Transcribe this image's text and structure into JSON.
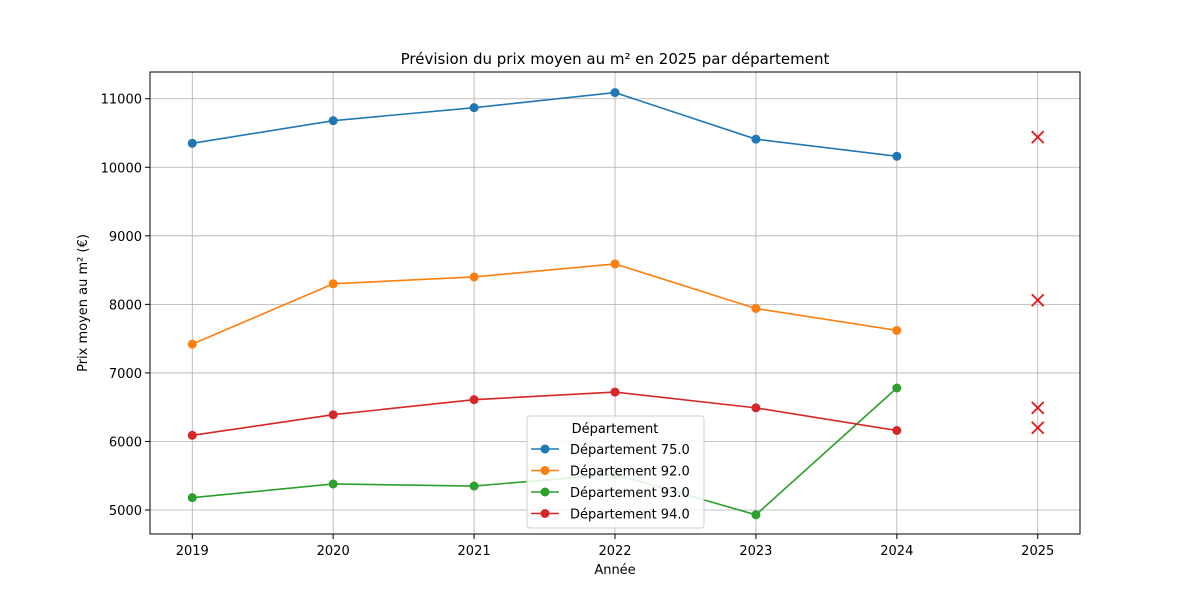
{
  "chart_data": {
    "type": "line",
    "title": "Prévision du prix moyen au m² en 2025 par département",
    "xlabel": "Année",
    "ylabel": "Prix moyen au m² (€)",
    "x": [
      2019,
      2020,
      2021,
      2022,
      2023,
      2024,
      2025
    ],
    "xlim": [
      2018.7,
      2025.3
    ],
    "ylim": [
      4650,
      11390
    ],
    "yticks": [
      5000,
      6000,
      7000,
      8000,
      9000,
      10000,
      11000
    ],
    "grid": true,
    "legend": {
      "title": "Département",
      "placement": "bottom-center"
    },
    "series": [
      {
        "name": "Département 75.0",
        "color": "#1f77b4",
        "x": [
          2019,
          2020,
          2021,
          2022,
          2023,
          2024
        ],
        "values": [
          10350,
          10680,
          10870,
          11090,
          10410,
          10160
        ]
      },
      {
        "name": "Département 92.0",
        "color": "#ff7f0e",
        "x": [
          2019,
          2020,
          2021,
          2022,
          2023,
          2024
        ],
        "values": [
          7420,
          8300,
          8400,
          8590,
          7940,
          7620
        ]
      },
      {
        "name": "Département 93.0",
        "color": "#2ca02c",
        "x": [
          2019,
          2020,
          2021,
          2022,
          2023,
          2024
        ],
        "values": [
          5180,
          5380,
          5350,
          5520,
          4930,
          6780
        ]
      },
      {
        "name": "Département 94.0",
        "color": "#d62728",
        "x": [
          2019,
          2020,
          2021,
          2022,
          2023,
          2024
        ],
        "values": [
          6090,
          6390,
          6610,
          6720,
          6490,
          6160
        ]
      }
    ],
    "forecast": {
      "x": 2025,
      "color": "#e31a1c",
      "marker": "x",
      "values": [
        10440,
        8060,
        6490,
        6200
      ]
    }
  }
}
